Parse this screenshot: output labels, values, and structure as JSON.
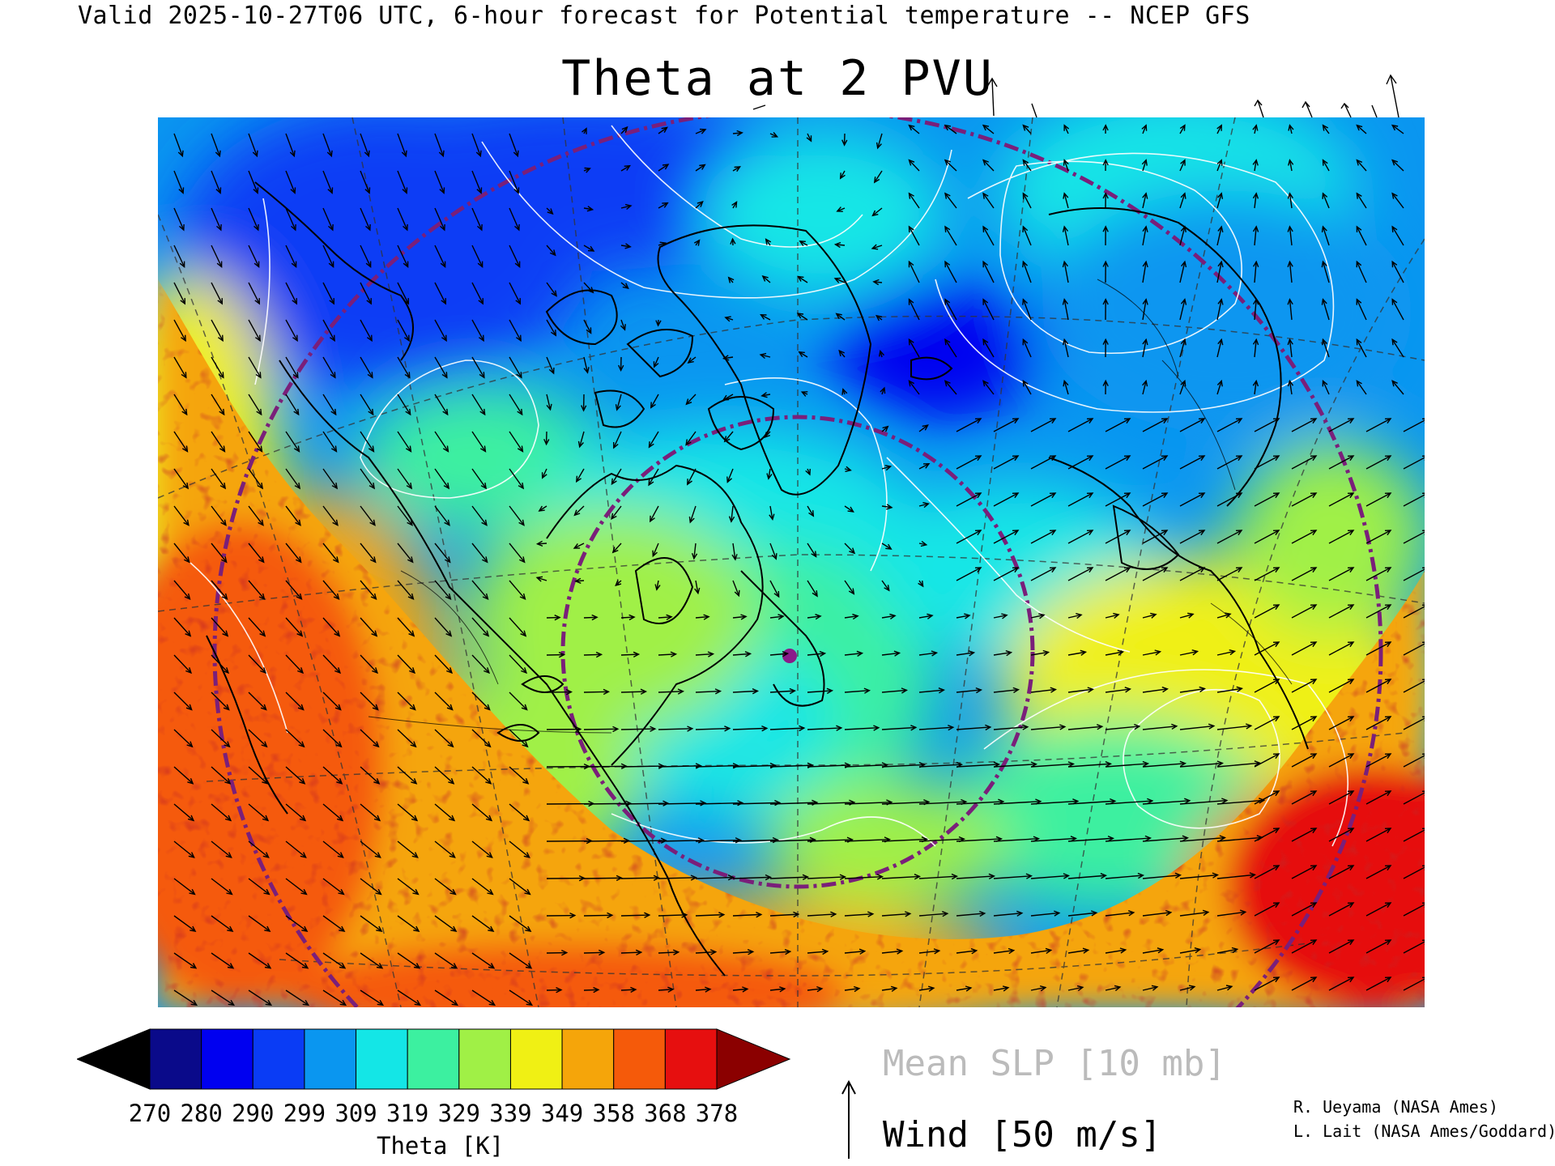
{
  "header": {
    "valid_line": "Valid 2025-10-27T06 UTC, 6-hour forecast for Potential temperature -- NCEP GFS",
    "title": "Theta at 2 PVU"
  },
  "colorbar": {
    "title": "Theta [K]",
    "labels": [
      "270",
      "280",
      "290",
      "299",
      "309",
      "319",
      "329",
      "339",
      "349",
      "358",
      "368",
      "378"
    ],
    "low_extension_color": "#000000",
    "high_extension_color": "#8b0000",
    "colors": [
      "#0a0a8a",
      "#0000f0",
      "#0a3cf5",
      "#0a96f0",
      "#14e6e6",
      "#3cf0a0",
      "#a0f046",
      "#f0f014",
      "#f5a50a",
      "#f55a0a",
      "#e60f0f"
    ]
  },
  "legend": {
    "slp_label": "Mean SLP [10 mb]",
    "wind_label": "Wind [50 m/s]",
    "slp_color": "#bbbbbb"
  },
  "credits": {
    "line1": "R. Ueyama (NASA Ames)",
    "line2": "L. Lait (NASA Ames/Goddard)"
  },
  "map": {
    "projection_circles_color": "#7a1f7a",
    "coastline_color": "#000000",
    "isobar_color": "#ffffff",
    "wind_arrow_color": "#000000"
  }
}
